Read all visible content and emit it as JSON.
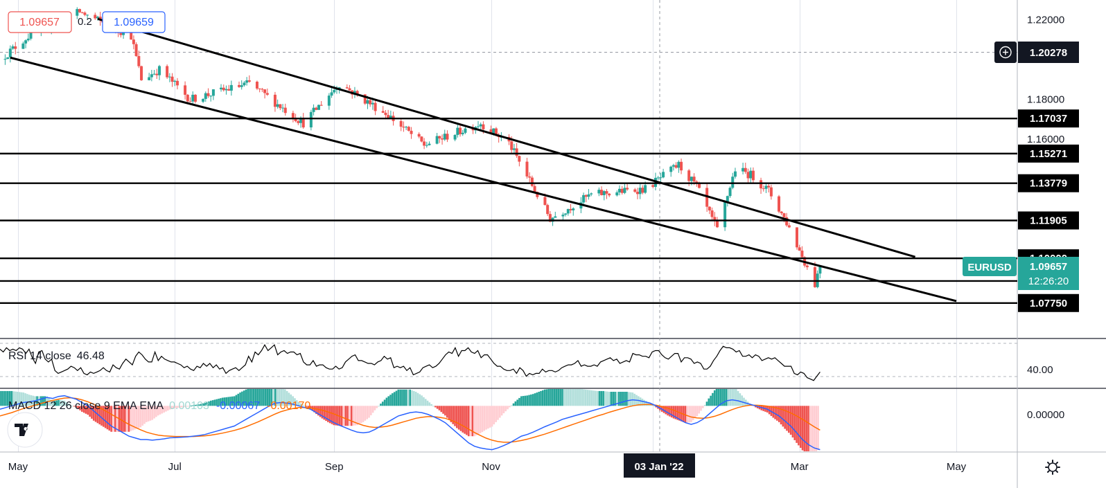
{
  "chart_data": {
    "type": "candlestick",
    "symbol": "EURUSD",
    "colors": {
      "up": "#26a69a",
      "down": "#ef5350",
      "symbol_badge": "#26a69a",
      "rsi_line": "#000000",
      "macd_line": "#2962ff",
      "signal_line": "#ff6d00"
    },
    "header": {
      "sell_price": "1.09657",
      "spread": "0.2",
      "buy_price": "1.09659"
    },
    "price_axis": {
      "ticks": [
        "1.22000",
        "1.18000",
        "1.16000"
      ],
      "ylim": [
        1.06,
        1.23
      ],
      "crosshair_price": "1.20278"
    },
    "last_price": {
      "symbol": "EURUSD",
      "price": "1.09657",
      "countdown": "12:26:20"
    },
    "horizontal_levels": [
      "1.17037",
      "1.15271",
      "1.13779",
      "1.11905",
      "1.10000",
      "1.08857",
      "1.07750"
    ],
    "time_axis": {
      "labels": [
        "May",
        "Jul",
        "Sep",
        "Nov",
        "Mar",
        "May"
      ],
      "highlighted": "03 Jan '22"
    },
    "channel": {
      "upper": [
        [
          "2021-06-01",
          1.2205
        ],
        [
          "2022-04-15",
          1.1007
        ]
      ],
      "lower": [
        [
          "2021-04-28",
          1.201
        ],
        [
          "2022-05-01",
          1.0785
        ]
      ]
    },
    "rsi": {
      "label": "RSI 14 close",
      "value": "46.48",
      "tick": "40.00",
      "ylim": [
        30,
        64
      ],
      "values": [
        57,
        55,
        58,
        56,
        57,
        56,
        58,
        57,
        54,
        57,
        51,
        47,
        55,
        56,
        50,
        48,
        50,
        42,
        40,
        41,
        42,
        43,
        45,
        44,
        42,
        44,
        40,
        39,
        41,
        40,
        41,
        42,
        44,
        42,
        41,
        46,
        44,
        43,
        47,
        50,
        48,
        46,
        52,
        55,
        53,
        50,
        48,
        48,
        55,
        49,
        52,
        50,
        49,
        48,
        48,
        47,
        46,
        44,
        45,
        43,
        42,
        45,
        44,
        47,
        45,
        47,
        44,
        46,
        43,
        44,
        40,
        42,
        43,
        44,
        42,
        44,
        46,
        52,
        48,
        55,
        53,
        56,
        60,
        56,
        58,
        60,
        53,
        55,
        56,
        54,
        55,
        55,
        53,
        54,
        48,
        46,
        46,
        49,
        45,
        46,
        46,
        44,
        43,
        43,
        45,
        43,
        44,
        48,
        50,
        52,
        53,
        49,
        49,
        48,
        47,
        47,
        46,
        48,
        49,
        52,
        50,
        51,
        44,
        45,
        44,
        45,
        42,
        44,
        39,
        40,
        41,
        44,
        45,
        46,
        44,
        45,
        47,
        50,
        53,
        55,
        54,
        58,
        52,
        56,
        56,
        58,
        55,
        54,
        56,
        51,
        53,
        53,
        50,
        47,
        45,
        45,
        43,
        42,
        42,
        43,
        40,
        44,
        42,
        38,
        40,
        39,
        40,
        40,
        43,
        41,
        42,
        42,
        41,
        42,
        44,
        45,
        46,
        46,
        47,
        49,
        45,
        46,
        45,
        45,
        46,
        45,
        48,
        49,
        50,
        51,
        49,
        50,
        47,
        48,
        49,
        48,
        54,
        53,
        53,
        52,
        52,
        51,
        55,
        56,
        56,
        53,
        51,
        50,
        52,
        54,
        54,
        48,
        51,
        51,
        50,
        47,
        48,
        47,
        43,
        43,
        45,
        49,
        52,
        56,
        59,
        58,
        58,
        57,
        55,
        56,
        52,
        52,
        53,
        51,
        53,
        52,
        49,
        50,
        51,
        50,
        51,
        49,
        47,
        45,
        45,
        45,
        40,
        39,
        41,
        40,
        37,
        36,
        35,
        38,
        41
      ]
    },
    "macd": {
      "label": "MACD 12 26 close 9 EMA EMA",
      "histogram_value": "0.00103",
      "macd_value": "-0.00067",
      "signal_value": "-0.00170",
      "tick": "0.00000",
      "ylim": [
        -0.0135,
        0.005
      ],
      "macd": [
        -0.001,
        -0.0005,
        0.0,
        0.0005,
        0.001,
        0.0012,
        0.0015,
        0.002,
        0.0025,
        0.0022,
        0.0028,
        0.003,
        0.0025,
        0.002,
        0.001,
        0.0,
        -0.0015,
        -0.003,
        -0.0045,
        -0.006,
        -0.007,
        -0.008,
        -0.009,
        -0.0095,
        -0.01,
        -0.01,
        -0.0102,
        -0.01,
        -0.0098,
        -0.0095,
        -0.0094,
        -0.0093,
        -0.0092,
        -0.009,
        -0.0088,
        -0.0085,
        -0.008,
        -0.0075,
        -0.007,
        -0.0065,
        -0.006,
        -0.005,
        -0.004,
        -0.003,
        -0.002,
        -0.001,
        0.0,
        0.0008,
        0.001,
        0.0008,
        0.0005,
        0.0,
        -0.0005,
        -0.001,
        -0.002,
        -0.003,
        -0.004,
        -0.005,
        -0.0058,
        -0.0065,
        -0.0072,
        -0.0078,
        -0.008,
        -0.0078,
        -0.007,
        -0.006,
        -0.005,
        -0.004,
        -0.003,
        -0.0025,
        -0.002,
        -0.0018,
        -0.002,
        -0.0025,
        -0.0032,
        -0.004,
        -0.005,
        -0.0065,
        -0.008,
        -0.0095,
        -0.011,
        -0.012,
        -0.0125,
        -0.0128,
        -0.013,
        -0.0125,
        -0.0118,
        -0.011,
        -0.01,
        -0.009,
        -0.0085,
        -0.0078,
        -0.007,
        -0.0062,
        -0.0055,
        -0.0048,
        -0.004,
        -0.0035,
        -0.003,
        -0.0025,
        -0.002,
        -0.0015,
        -0.001,
        -0.0005,
        0.0,
        0.0005,
        0.001,
        0.0015,
        0.0018,
        0.0016,
        0.0012,
        0.0008,
        0.0,
        -0.001,
        -0.002,
        -0.003,
        -0.004,
        -0.005,
        -0.0055,
        -0.005,
        -0.004,
        -0.0025,
        -0.001,
        0.0005,
        0.0015,
        0.0018,
        0.0015,
        0.001,
        0.0005,
        0.0,
        -0.0005,
        -0.001,
        -0.002,
        -0.003,
        -0.0045,
        -0.006,
        -0.008,
        -0.01,
        -0.0115,
        -0.0125,
        -0.013
      ],
      "signal": [
        -0.003,
        -0.0025,
        -0.002,
        -0.0014,
        -0.0008,
        -0.0003,
        0.0002,
        0.0007,
        0.0012,
        0.0016,
        0.002,
        0.0023,
        0.0024,
        0.0022,
        0.0018,
        0.0012,
        0.0005,
        -0.0005,
        -0.0015,
        -0.0025,
        -0.0035,
        -0.0045,
        -0.0055,
        -0.0063,
        -0.0071,
        -0.0078,
        -0.0083,
        -0.0087,
        -0.0089,
        -0.009,
        -0.0091,
        -0.0091,
        -0.0091,
        -0.0091,
        -0.009,
        -0.0089,
        -0.0087,
        -0.0084,
        -0.0081,
        -0.0077,
        -0.0073,
        -0.0068,
        -0.0062,
        -0.0055,
        -0.0048,
        -0.004,
        -0.0032,
        -0.0024,
        -0.0017,
        -0.0012,
        -0.0008,
        -0.0005,
        -0.0005,
        -0.0006,
        -0.0009,
        -0.0013,
        -0.0018,
        -0.0024,
        -0.0031,
        -0.0038,
        -0.0045,
        -0.0052,
        -0.0058,
        -0.0062,
        -0.0064,
        -0.0063,
        -0.0061,
        -0.0057,
        -0.0052,
        -0.0047,
        -0.0042,
        -0.0037,
        -0.0034,
        -0.0032,
        -0.0032,
        -0.0034,
        -0.0037,
        -0.0043,
        -0.005,
        -0.0059,
        -0.0069,
        -0.0079,
        -0.0088,
        -0.0096,
        -0.0102,
        -0.0106,
        -0.0108,
        -0.0108,
        -0.0106,
        -0.0103,
        -0.0099,
        -0.0094,
        -0.0089,
        -0.0084,
        -0.0078,
        -0.0072,
        -0.0066,
        -0.006,
        -0.0054,
        -0.0048,
        -0.0042,
        -0.0036,
        -0.003,
        -0.0025,
        -0.0019,
        -0.0014,
        -0.0009,
        -0.0004,
        0.0,
        0.0003,
        0.0004,
        0.0004,
        0.0002,
        -0.0002,
        -0.0007,
        -0.0013,
        -0.002,
        -0.0027,
        -0.0033,
        -0.0036,
        -0.0037,
        -0.0035,
        -0.0031,
        -0.0025,
        -0.0018,
        -0.0011,
        -0.0005,
        -0.0001,
        0.0002,
        0.0002,
        0.0001,
        -0.0001,
        -0.0004,
        -0.0008,
        -0.0014,
        -0.0021,
        -0.003,
        -0.004,
        -0.0051,
        -0.0062,
        -0.0072
      ]
    }
  }
}
